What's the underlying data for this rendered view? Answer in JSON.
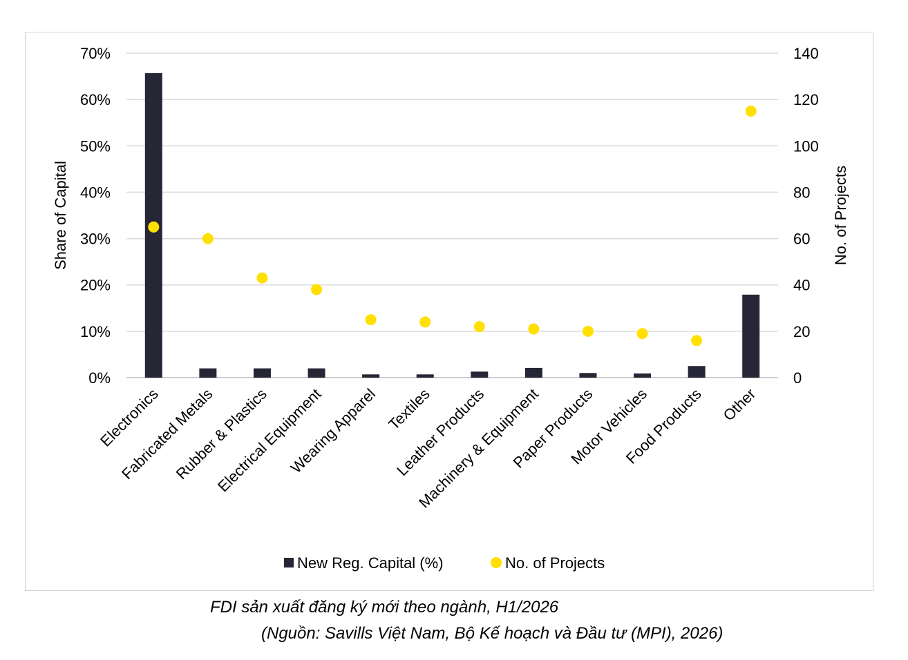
{
  "chart_data": {
    "type": "bar",
    "categories": [
      "Electronics",
      "Fabricated Metals",
      "Rubber & Plastics",
      "Electrical Equipment",
      "Wearing Apparel",
      "Textiles",
      "Leather Products",
      "Machinery & Equipment",
      "Paper Products",
      "Motor Vehicles",
      "Food Products",
      "Other"
    ],
    "series": [
      {
        "name": "New Reg. Capital (%)",
        "kind": "bar",
        "axis": "left",
        "color": "#262637",
        "values": [
          65.7,
          2.0,
          2.0,
          2.0,
          0.7,
          0.7,
          1.3,
          2.1,
          1.0,
          0.9,
          2.5,
          17.9
        ]
      },
      {
        "name": "No. of Projects",
        "kind": "scatter",
        "axis": "right",
        "color": "#FFE000",
        "values": [
          65,
          60,
          43,
          38,
          25,
          24,
          22,
          21,
          20,
          19,
          16,
          115
        ]
      }
    ],
    "ylabel": "Share of Capital",
    "ylabel_right": "No. of Projects",
    "ylim": [
      0,
      70
    ],
    "ylim_right": [
      0,
      140
    ],
    "yticks": [
      "0%",
      "10%",
      "20%",
      "30%",
      "40%",
      "50%",
      "60%",
      "70%"
    ],
    "yticks_right": [
      "0",
      "20",
      "40",
      "60",
      "80",
      "100",
      "120",
      "140"
    ],
    "grid": true,
    "legend_position": "bottom"
  },
  "caption": {
    "title": "FDI sản xuất đăng ký mới theo ngành, H1/2026",
    "source": "(Nguồn: Savills Việt Nam, Bộ Kế hoạch và Đầu tư (MPI), 2026)"
  }
}
